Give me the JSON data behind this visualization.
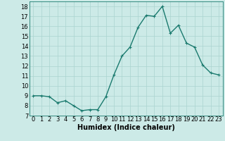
{
  "x": [
    0,
    1,
    2,
    3,
    4,
    5,
    6,
    7,
    8,
    9,
    10,
    11,
    12,
    13,
    14,
    15,
    16,
    17,
    18,
    19,
    20,
    21,
    22,
    23
  ],
  "y": [
    9.0,
    9.0,
    8.9,
    8.3,
    8.5,
    8.0,
    7.5,
    7.6,
    7.6,
    8.9,
    11.1,
    13.0,
    13.9,
    15.9,
    17.1,
    17.0,
    18.0,
    15.3,
    16.1,
    14.3,
    13.9,
    12.1,
    11.3,
    11.1
  ],
  "line_color": "#1a7a6e",
  "bg_color": "#cceae7",
  "grid_color": "#aad4d0",
  "xlabel": "Humidex (Indice chaleur)",
  "ylabel_ticks": [
    7,
    8,
    9,
    10,
    11,
    12,
    13,
    14,
    15,
    16,
    17,
    18
  ],
  "ylim": [
    7,
    18.5
  ],
  "xlim": [
    -0.5,
    23.5
  ],
  "marker": "+",
  "markersize": 3,
  "linewidth": 1.0,
  "xlabel_fontsize": 7,
  "tick_fontsize": 6
}
